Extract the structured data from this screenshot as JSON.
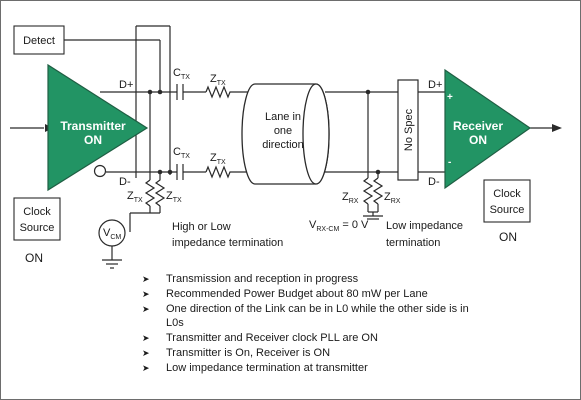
{
  "diagram": {
    "detect_label": "Detect",
    "transmitter": {
      "line1": "Transmitter",
      "line2": "ON"
    },
    "receiver": {
      "line1": "Receiver",
      "line2": "ON"
    },
    "tx_pin_pos": "D+",
    "tx_pin_neg": "D-",
    "rx_pin_pos": "D+",
    "rx_pin_neg": "D-",
    "rx_plus_sign": "+",
    "rx_minus_sign": "-",
    "ctx_top": {
      "main": "C",
      "sub": "TX"
    },
    "ztx_top": {
      "main": "Z",
      "sub": "TX"
    },
    "ctx_bottom": {
      "main": "C",
      "sub": "TX"
    },
    "ztx_bottom": {
      "main": "Z",
      "sub": "TX"
    },
    "ztx_term_left": {
      "main": "Z",
      "sub": "TX"
    },
    "ztx_term_right": {
      "main": "Z",
      "sub": "TX"
    },
    "zrx_term_left": {
      "main": "Z",
      "sub": "RX"
    },
    "zrx_term_right": {
      "main": "Z",
      "sub": "RX"
    },
    "lane_text": [
      "Lane in",
      "one",
      "direction"
    ],
    "no_spec_label": "No Spec",
    "vcm": {
      "main": "V",
      "sub": "CM"
    },
    "vrx_cm": {
      "main": "V",
      "sub": "RX-CM",
      "suffix": " = 0 V"
    },
    "tx_termination": [
      "High or Low",
      "impedance termination"
    ],
    "rx_termination": [
      "Low impedance",
      "termination"
    ],
    "tx_clock_source": [
      "Clock",
      "Source"
    ],
    "tx_clock_state": "ON",
    "rx_clock_source": [
      "Clock",
      "Source"
    ],
    "rx_clock_state": "ON"
  },
  "bullets": [
    "Transmission and reception in progress",
    "Recommended Power Budget about 80 mW per Lane",
    "One direction of the Link can be in L0 while the other side is in L0s",
    "Transmitter and Receiver clock PLL are ON",
    "Transmitter is On, Receiver is ON",
    "Low impedance termination at transmitter"
  ],
  "bullet_icon": "arrowhead-icon",
  "colors": {
    "amplifier_fill": "#229464",
    "line": "#2a2a2a",
    "frame": "#6d6d6d"
  }
}
